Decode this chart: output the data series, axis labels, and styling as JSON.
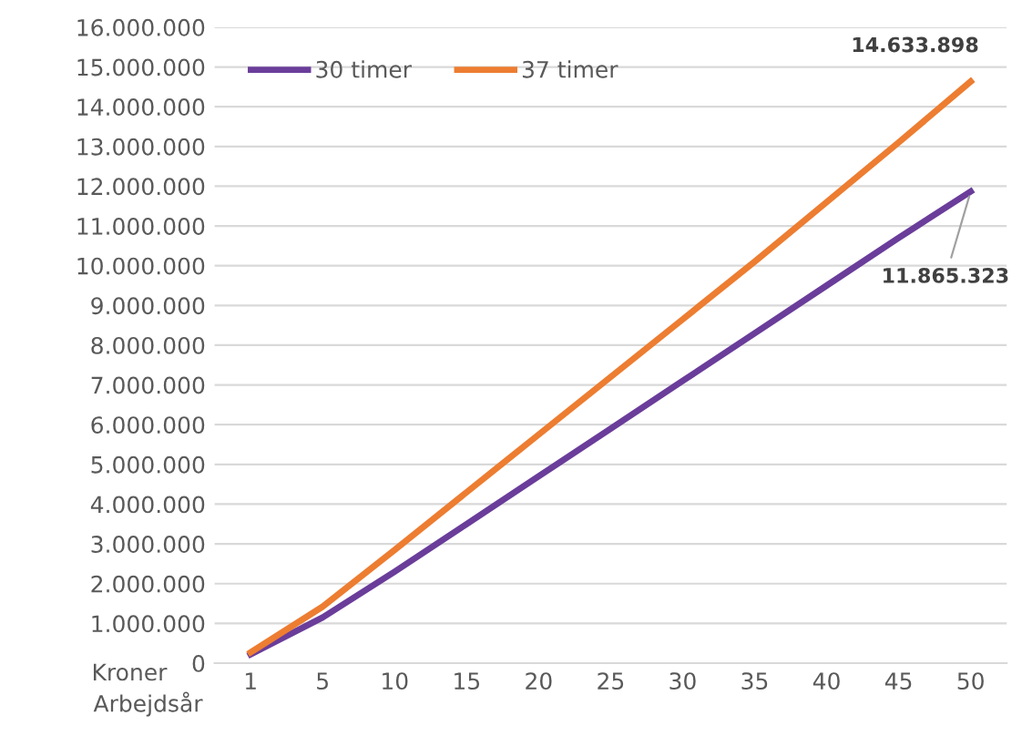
{
  "chart_data": {
    "type": "line",
    "xlabel": "Arbejdsår",
    "ylabel": "Kroner",
    "categories": [
      "1",
      "5",
      "10",
      "15",
      "20",
      "25",
      "30",
      "35",
      "40",
      "45",
      "50"
    ],
    "series": [
      {
        "name": "30 timer",
        "color": "#6a3d9a",
        "values": [
          220000,
          1150000,
          2300000,
          3500000,
          4700000,
          5900000,
          7100000,
          8300000,
          9500000,
          10700000,
          11865323
        ],
        "value_labels": [
          null,
          null,
          null,
          null,
          null,
          null,
          null,
          null,
          null,
          null,
          "11.865.323"
        ]
      },
      {
        "name": "37 timer",
        "color": "#ed7d31",
        "values": [
          270000,
          1420000,
          2850000,
          4300000,
          5750000,
          7200000,
          8650000,
          10100000,
          11600000,
          13100000,
          14633898
        ],
        "value_labels": [
          null,
          null,
          null,
          null,
          null,
          null,
          null,
          null,
          null,
          null,
          "14.633.898"
        ]
      }
    ],
    "ylim": [
      0,
      16000000
    ],
    "yticks": [
      {
        "value": 0,
        "label": "0"
      },
      {
        "value": 1000000,
        "label": "1.000.000"
      },
      {
        "value": 2000000,
        "label": "2.000.000"
      },
      {
        "value": 3000000,
        "label": "3.000.000"
      },
      {
        "value": 4000000,
        "label": "4.000.000"
      },
      {
        "value": 5000000,
        "label": "5.000.000"
      },
      {
        "value": 6000000,
        "label": "6.000.000"
      },
      {
        "value": 7000000,
        "label": "7.000.000"
      },
      {
        "value": 8000000,
        "label": "8.000.000"
      },
      {
        "value": 9000000,
        "label": "9.000.000"
      },
      {
        "value": 10000000,
        "label": "10.000.000"
      },
      {
        "value": 11000000,
        "label": "11.000.000"
      },
      {
        "value": 12000000,
        "label": "12.000.000"
      },
      {
        "value": 13000000,
        "label": "13.000.000"
      },
      {
        "value": 14000000,
        "label": "14.000.000"
      },
      {
        "value": 15000000,
        "label": "15.000.000"
      },
      {
        "value": 16000000,
        "label": "16.000.000"
      }
    ],
    "grid": "y",
    "legend": "top left",
    "marker": "none",
    "line_style": "solid"
  }
}
